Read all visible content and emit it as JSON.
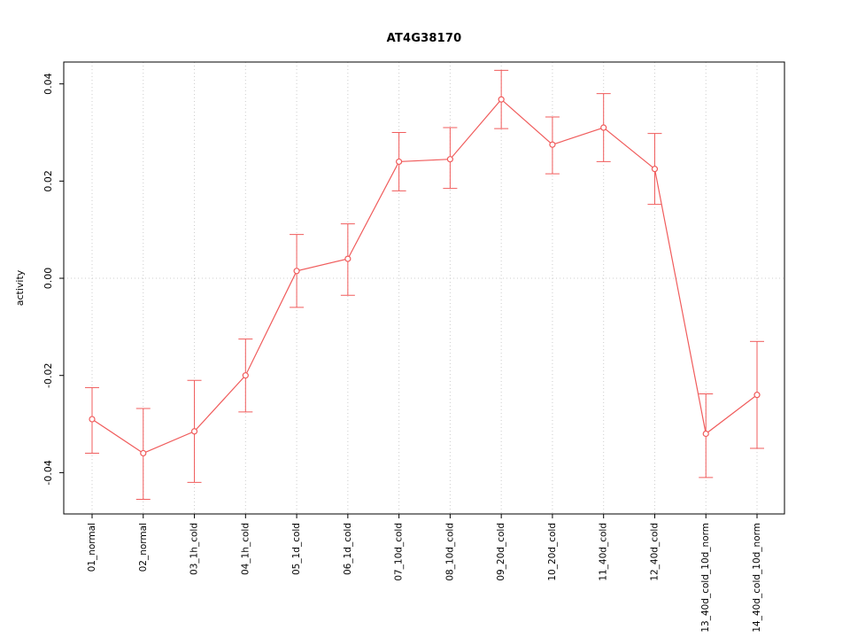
{
  "chart_data": {
    "type": "line",
    "title": "AT4G38170",
    "xlabel": "",
    "ylabel": "activity",
    "ylim": [
      -0.0485,
      0.0445
    ],
    "ytick_values": [
      -0.04,
      -0.02,
      0.0,
      0.02,
      0.04
    ],
    "ytick_labels": [
      "-0.04",
      "-0.02",
      "0.00",
      "0.02",
      "0.04"
    ],
    "grid": "dotted vertical line at each category; dotted horizontal line at y=0",
    "legend": "none",
    "series_color": "#f05c5c",
    "grid_color": "#cccccc",
    "categories": [
      "01_normal",
      "02_normal",
      "03_1h_cold",
      "04_1h_cold",
      "05_1d_cold",
      "06_1d_cold",
      "07_10d_cold",
      "08_10d_cold",
      "09_20d_cold",
      "10_20d_cold",
      "11_40d_cold",
      "12_40d_cold",
      "13_40d_cold_10d_norm",
      "14_40d_cold_10d_norm"
    ],
    "values": [
      -0.029,
      -0.036,
      -0.0315,
      -0.02,
      0.0015,
      0.004,
      0.024,
      0.0245,
      0.0368,
      0.0275,
      0.031,
      0.0225,
      -0.032,
      -0.024
    ],
    "error_low": [
      -0.036,
      -0.0455,
      -0.042,
      -0.0275,
      -0.006,
      -0.0035,
      0.018,
      0.0185,
      0.0308,
      0.0215,
      0.024,
      0.0152,
      -0.041,
      -0.035
    ],
    "error_high": [
      -0.0225,
      -0.0268,
      -0.021,
      -0.0125,
      0.009,
      0.0112,
      0.03,
      0.031,
      0.0428,
      0.0332,
      0.038,
      0.0298,
      -0.0238,
      -0.013
    ]
  }
}
